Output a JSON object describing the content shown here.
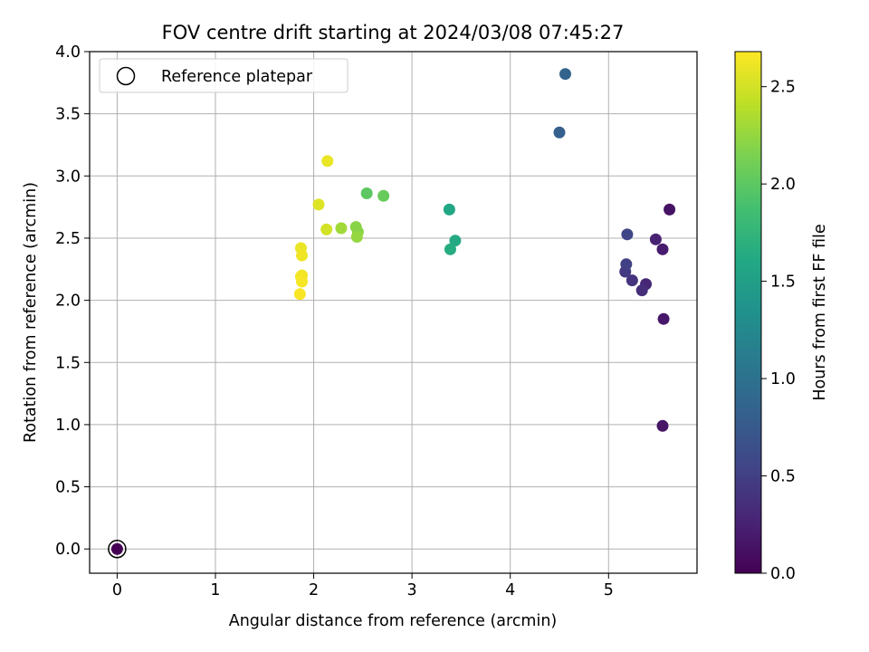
{
  "chart_data": {
    "type": "scatter",
    "title": "FOV centre drift starting at 2024/03/08 07:45:27",
    "xlabel": "Angular distance from reference (arcmin)",
    "ylabel": "Rotation from reference (arcmin)",
    "xlim": [
      -0.28,
      5.9
    ],
    "ylim": [
      -0.195,
      4.0
    ],
    "xticks": [
      0,
      1,
      2,
      3,
      4,
      5
    ],
    "xtick_labels": [
      "0",
      "1",
      "2",
      "3",
      "4",
      "5"
    ],
    "yticks": [
      0.0,
      0.5,
      1.0,
      1.5,
      2.0,
      2.5,
      3.0,
      3.5,
      4.0
    ],
    "ytick_labels": [
      "0.0",
      "0.5",
      "1.0",
      "1.5",
      "2.0",
      "2.5",
      "3.0",
      "3.5",
      "4.0"
    ],
    "grid": true,
    "colormap": "viridis",
    "colorbar": {
      "label": "Hours from first FF file",
      "range": [
        0.0,
        2.68
      ],
      "ticks": [
        0.0,
        0.5,
        1.0,
        1.5,
        2.0,
        2.5
      ],
      "tick_labels": [
        "0.0",
        "0.5",
        "1.0",
        "1.5",
        "2.0",
        "2.5"
      ]
    },
    "legend": {
      "placement": "top-left",
      "entries": [
        "Reference platepar"
      ]
    },
    "reference": {
      "x": 0,
      "y": 0
    },
    "points": [
      {
        "x": 0.0,
        "y": 0.0,
        "c": 0.0
      },
      {
        "x": 5.55,
        "y": 0.99,
        "c": 0.15
      },
      {
        "x": 5.56,
        "y": 1.85,
        "c": 0.17
      },
      {
        "x": 5.62,
        "y": 2.73,
        "c": 0.13
      },
      {
        "x": 5.55,
        "y": 2.41,
        "c": 0.2
      },
      {
        "x": 5.48,
        "y": 2.49,
        "c": 0.25
      },
      {
        "x": 5.38,
        "y": 2.13,
        "c": 0.3
      },
      {
        "x": 5.34,
        "y": 2.08,
        "c": 0.35
      },
      {
        "x": 5.24,
        "y": 2.16,
        "c": 0.4
      },
      {
        "x": 5.17,
        "y": 2.23,
        "c": 0.45
      },
      {
        "x": 5.18,
        "y": 2.29,
        "c": 0.5
      },
      {
        "x": 5.19,
        "y": 2.53,
        "c": 0.55
      },
      {
        "x": 4.5,
        "y": 3.35,
        "c": 0.8
      },
      {
        "x": 4.56,
        "y": 3.82,
        "c": 0.85
      },
      {
        "x": 3.38,
        "y": 2.73,
        "c": 1.6
      },
      {
        "x": 3.44,
        "y": 2.48,
        "c": 1.62
      },
      {
        "x": 3.39,
        "y": 2.41,
        "c": 1.65
      },
      {
        "x": 2.54,
        "y": 2.86,
        "c": 2.0
      },
      {
        "x": 2.71,
        "y": 2.84,
        "c": 2.05
      },
      {
        "x": 2.43,
        "y": 2.59,
        "c": 2.2
      },
      {
        "x": 2.45,
        "y": 2.55,
        "c": 2.2
      },
      {
        "x": 2.44,
        "y": 2.51,
        "c": 2.25
      },
      {
        "x": 2.28,
        "y": 2.58,
        "c": 2.3
      },
      {
        "x": 2.13,
        "y": 2.57,
        "c": 2.5
      },
      {
        "x": 2.05,
        "y": 2.77,
        "c": 2.55
      },
      {
        "x": 2.14,
        "y": 3.12,
        "c": 2.6
      },
      {
        "x": 1.87,
        "y": 2.42,
        "c": 2.6
      },
      {
        "x": 1.88,
        "y": 2.36,
        "c": 2.62
      },
      {
        "x": 1.88,
        "y": 2.2,
        "c": 2.63
      },
      {
        "x": 1.87,
        "y": 2.19,
        "c": 2.64
      },
      {
        "x": 1.88,
        "y": 2.15,
        "c": 2.65
      },
      {
        "x": 1.86,
        "y": 2.05,
        "c": 2.66
      }
    ]
  }
}
